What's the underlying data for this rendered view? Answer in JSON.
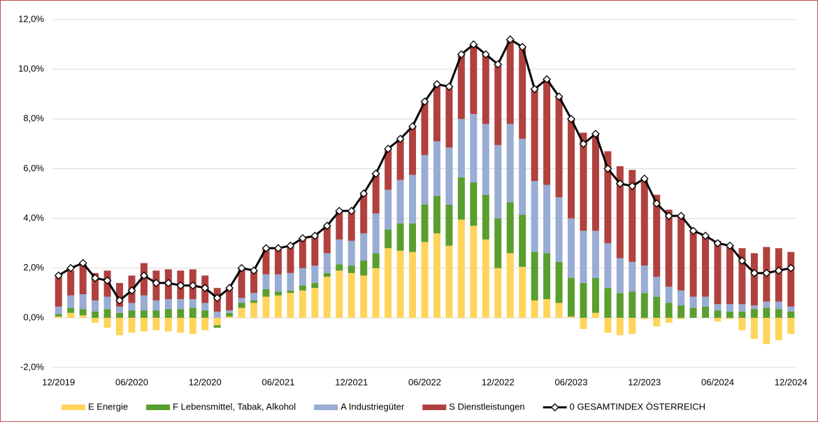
{
  "chart_data": {
    "type": "bar",
    "stacked": true,
    "categories": [
      "12/2019",
      null,
      null,
      null,
      null,
      null,
      "06/2020",
      null,
      null,
      null,
      null,
      null,
      "12/2020",
      null,
      null,
      null,
      null,
      null,
      "06/2021",
      null,
      null,
      null,
      null,
      null,
      "12/2021",
      null,
      null,
      null,
      null,
      null,
      "06/2022",
      null,
      null,
      null,
      null,
      null,
      "12/2022",
      null,
      null,
      null,
      null,
      null,
      "06/2023",
      null,
      null,
      null,
      null,
      null,
      "12/2023",
      null,
      null,
      null,
      null,
      null,
      "06/2024",
      null,
      null,
      null,
      null,
      null,
      "12/2024"
    ],
    "ylim": [
      -2,
      12
    ],
    "yticks": [
      {
        "value": -2,
        "label": "-2,0%"
      },
      {
        "value": 0,
        "label": "0,0%"
      },
      {
        "value": 2,
        "label": "2,0%"
      },
      {
        "value": 4,
        "label": "4,0%"
      },
      {
        "value": 6,
        "label": "6,0%"
      },
      {
        "value": 8,
        "label": "8,0%"
      },
      {
        "value": 10,
        "label": "10,0%"
      },
      {
        "value": 12,
        "label": "12,0%"
      }
    ],
    "grid": true,
    "legend": "bottom",
    "series": [
      {
        "name": "E Energie",
        "color": "#ffd45a",
        "values": [
          0.05,
          0.2,
          0.1,
          -0.2,
          -0.4,
          -0.7,
          -0.6,
          -0.55,
          -0.5,
          -0.55,
          -0.6,
          -0.65,
          -0.5,
          -0.3,
          0.05,
          0.4,
          0.6,
          0.85,
          0.9,
          1.0,
          1.1,
          1.2,
          1.65,
          1.9,
          1.8,
          1.7,
          2.0,
          2.8,
          2.7,
          2.65,
          3.05,
          3.4,
          2.9,
          3.95,
          3.7,
          3.15,
          2.0,
          2.6,
          2.05,
          0.7,
          0.75,
          0.6,
          0.05,
          -0.45,
          0.2,
          -0.6,
          -0.7,
          -0.65,
          -0.05,
          -0.35,
          -0.2,
          -0.05,
          0.0,
          0.0,
          -0.15,
          -0.05,
          -0.5,
          -0.85,
          -1.05,
          -0.9,
          -0.65
        ]
      },
      {
        "name": "F Lebensmittel, Tabak, Alkohol",
        "color": "#5a9e2f",
        "values": [
          0.1,
          0.2,
          0.25,
          0.25,
          0.35,
          0.2,
          0.3,
          0.3,
          0.3,
          0.35,
          0.35,
          0.4,
          0.3,
          -0.1,
          0.15,
          0.2,
          0.1,
          0.3,
          0.15,
          0.1,
          0.2,
          0.2,
          0.15,
          0.25,
          0.3,
          0.6,
          0.6,
          0.75,
          1.1,
          1.15,
          1.5,
          1.5,
          1.65,
          1.7,
          1.75,
          1.8,
          2.0,
          2.05,
          2.1,
          1.95,
          1.85,
          1.65,
          1.55,
          1.4,
          1.4,
          1.2,
          1.0,
          1.05,
          1.0,
          0.85,
          0.6,
          0.5,
          0.4,
          0.45,
          0.3,
          0.25,
          0.25,
          0.35,
          0.4,
          0.35,
          0.25
        ]
      },
      {
        "name": "A Industriegüter",
        "color": "#98acd4",
        "values": [
          0.3,
          0.5,
          0.6,
          0.45,
          0.5,
          0.25,
          0.3,
          0.6,
          0.4,
          0.4,
          0.4,
          0.35,
          0.3,
          0.25,
          0.1,
          0.2,
          0.3,
          0.6,
          0.7,
          0.7,
          0.7,
          0.7,
          0.8,
          1.0,
          1.0,
          1.1,
          1.6,
          1.6,
          1.75,
          1.95,
          2.0,
          2.2,
          2.3,
          2.35,
          2.75,
          2.85,
          2.95,
          3.15,
          3.05,
          2.85,
          2.75,
          2.6,
          2.4,
          2.1,
          1.9,
          1.8,
          1.4,
          1.2,
          1.1,
          0.8,
          0.65,
          0.6,
          0.45,
          0.4,
          0.25,
          0.3,
          0.3,
          0.15,
          0.25,
          0.3,
          0.2
        ]
      },
      {
        "name": "S Dienstleistungen",
        "color": "#b0413e",
        "values": [
          1.2,
          1.0,
          1.2,
          1.1,
          1.05,
          0.95,
          1.1,
          1.3,
          1.2,
          1.2,
          1.15,
          1.2,
          1.1,
          0.95,
          0.9,
          1.2,
          0.9,
          1.05,
          1.0,
          1.1,
          1.2,
          1.2,
          1.1,
          1.15,
          1.2,
          1.6,
          1.6,
          1.6,
          1.65,
          1.95,
          2.1,
          2.3,
          2.45,
          2.6,
          2.8,
          2.8,
          3.25,
          3.4,
          3.7,
          3.7,
          4.25,
          4.05,
          4.0,
          3.95,
          3.9,
          3.7,
          3.7,
          3.7,
          3.45,
          3.3,
          3.1,
          3.05,
          2.6,
          2.45,
          2.55,
          2.4,
          2.25,
          2.1,
          2.2,
          2.15,
          2.2
        ]
      },
      {
        "name": "0 GESAMTINDEX ÖSTERREICH",
        "color": "#000000",
        "type": "line",
        "values": [
          1.7,
          2.0,
          2.2,
          1.6,
          1.5,
          0.7,
          1.1,
          1.7,
          1.4,
          1.4,
          1.3,
          1.3,
          1.2,
          0.8,
          1.2,
          2.0,
          1.9,
          2.8,
          2.8,
          2.9,
          3.2,
          3.3,
          3.7,
          4.3,
          4.3,
          5.0,
          5.8,
          6.8,
          7.2,
          7.7,
          8.7,
          9.4,
          9.3,
          10.6,
          11.0,
          10.6,
          10.2,
          11.2,
          10.9,
          9.2,
          9.6,
          8.9,
          8.0,
          7.0,
          7.4,
          6.0,
          5.4,
          5.3,
          5.6,
          4.6,
          4.1,
          4.1,
          3.5,
          3.3,
          3.0,
          2.9,
          2.3,
          1.8,
          1.8,
          1.9,
          2.0
        ]
      }
    ]
  }
}
